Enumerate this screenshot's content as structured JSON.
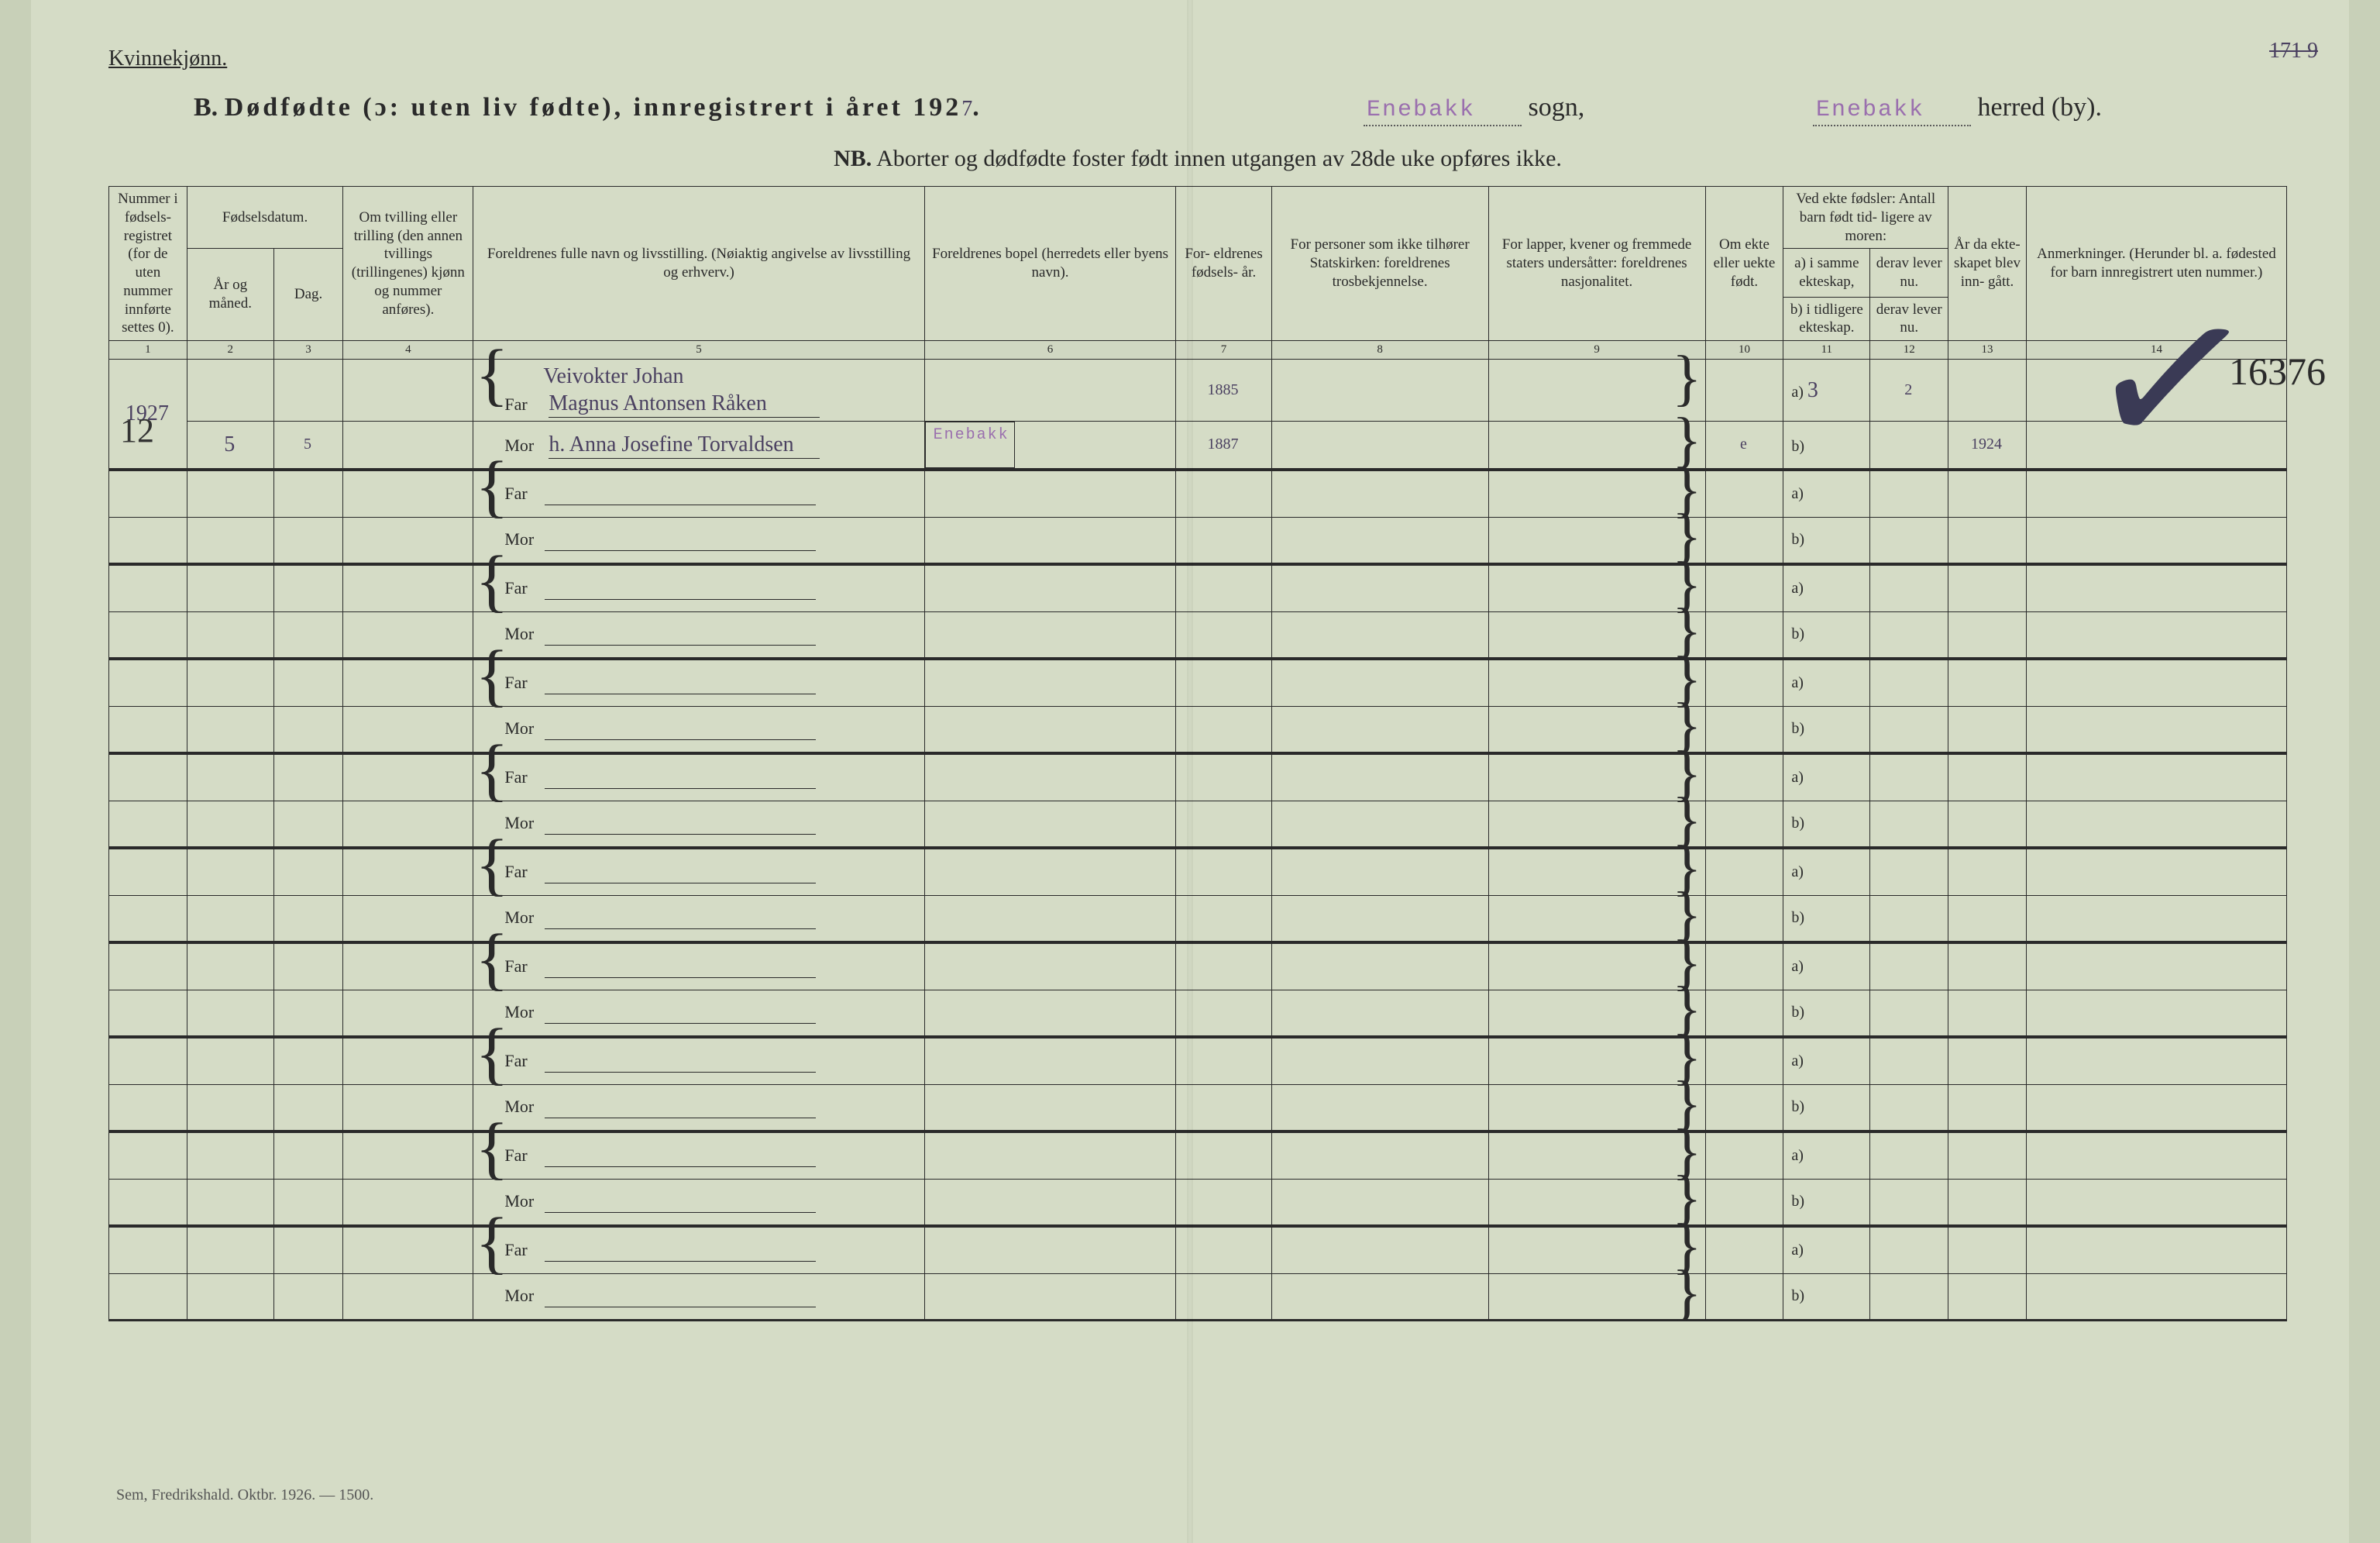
{
  "colors": {
    "background": "#d5dcc6",
    "ink": "#2a2a2a",
    "stamp": "#9a6fae",
    "handwriting": "#4a4060"
  },
  "header": {
    "gender": "Kvinnekjønn.",
    "title_prefix": "B.",
    "title_main": "Dødfødte (ɔ: uten liv fødte), innregistrert i året 192",
    "year_digit": "7",
    "title_period": ".",
    "sogn_value": "Enebakk",
    "sogn_label": "sogn,",
    "herred_value": "Enebakk",
    "herred_label": "herred (by).",
    "page_corner": "171 9",
    "nb_label": "NB.",
    "nb_text": "Aborter og dødfødte foster født innen utgangen av 28de uke opføres ikke."
  },
  "columns": {
    "c1": "Nummer i fødsels- registret (for de uten nummer innførte settes 0).",
    "c2_top": "Fødselsdatum.",
    "c2": "År og måned.",
    "c3": "Dag.",
    "c4": "Om tvilling eller trilling (den annen tvillings (trillingenes) kjønn og nummer anføres).",
    "c5": "Foreldrenes fulle navn og livsstilling.\n(Nøiaktig angivelse av livsstilling og erhverv.)",
    "c6": "Foreldrenes bopel\n(herredets eller byens navn).",
    "c7": "For- eldrenes fødsels- år.",
    "c8": "For personer som ikke tilhører Statskirken:\nforeldrenes trosbekjennelse.",
    "c9": "For lapper, kvener og fremmede staters undersåtter:\nforeldrenes nasjonalitet.",
    "c10": "Om ekte eller uekte født.",
    "c11_top": "Ved ekte fødsler:\nAntall barn født tid- ligere av moren:",
    "c11a": "a) i samme ekteskap,",
    "c11b": "b) i tidligere ekteskap.",
    "c12a": "derav lever nu.",
    "c12b": "derav lever nu.",
    "c13": "År da ekte- skapet blev inn- gått.",
    "c14": "Anmerkninger.\n(Herunder bl. a. fødested for barn innregistrert uten nummer.)",
    "nums": [
      "1",
      "2",
      "3",
      "4",
      "5",
      "6",
      "7",
      "8",
      "9",
      "10",
      "11",
      "12",
      "13",
      "14"
    ]
  },
  "labels": {
    "far": "Far",
    "mor": "Mor",
    "a": "a)",
    "b": "b)"
  },
  "entry1": {
    "number": "12",
    "year_month": "1927",
    "year_month2": "5",
    "day": "5",
    "occupation": "Veivokter Johan",
    "far_name": "Magnus Antonsen Råken",
    "mor_name": "h. Anna Josefine Torvaldsen",
    "bopel": "Enebakk",
    "far_birthyear": "1885",
    "mor_birthyear": "1887",
    "ekte": "e",
    "a_value": "3",
    "a_derav": "2",
    "b_value": "",
    "year_married": "1924"
  },
  "overlay": {
    "check": "✓",
    "id_number": "16376"
  },
  "footer": "Sem, Fredrikshald. Oktbr. 1926. — 1500."
}
